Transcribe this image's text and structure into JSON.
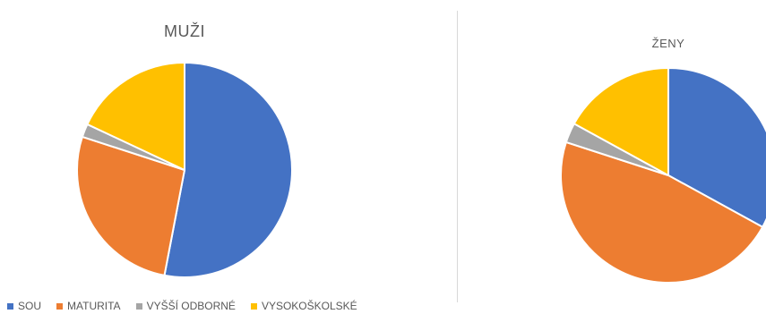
{
  "chart_data": [
    {
      "type": "pie",
      "title": "MUŽI",
      "categories": [
        "SOU",
        "MATURITA",
        "VYŠŠÍ ODBORNÉ",
        "VYSOKOŠKOLSKÉ"
      ],
      "values": [
        53,
        27,
        2,
        18
      ],
      "colors": [
        "#4472C4",
        "#ED7D31",
        "#A5A5A5",
        "#FFC000"
      ],
      "legend": "bottom"
    },
    {
      "type": "pie",
      "title": "ŽENY",
      "categories": [
        "SOU",
        "MATURITA",
        "VYŠŠÍ ODBORNÉ",
        "VYSOKOŠKOLSKÉ"
      ],
      "values": [
        33,
        47,
        3,
        17
      ],
      "colors": [
        "#4472C4",
        "#ED7D31",
        "#A5A5A5",
        "#FFC000"
      ],
      "legend": "bottom"
    }
  ],
  "legend": {
    "items": [
      {
        "label": "SOU",
        "color": "#4472C4"
      },
      {
        "label": "MATURITA",
        "color": "#ED7D31"
      },
      {
        "label": "VYŠŠÍ ODBORNÉ",
        "color": "#A5A5A5"
      },
      {
        "label": "VYSOKOŠKOLSKÉ",
        "color": "#FFC000"
      }
    ]
  }
}
